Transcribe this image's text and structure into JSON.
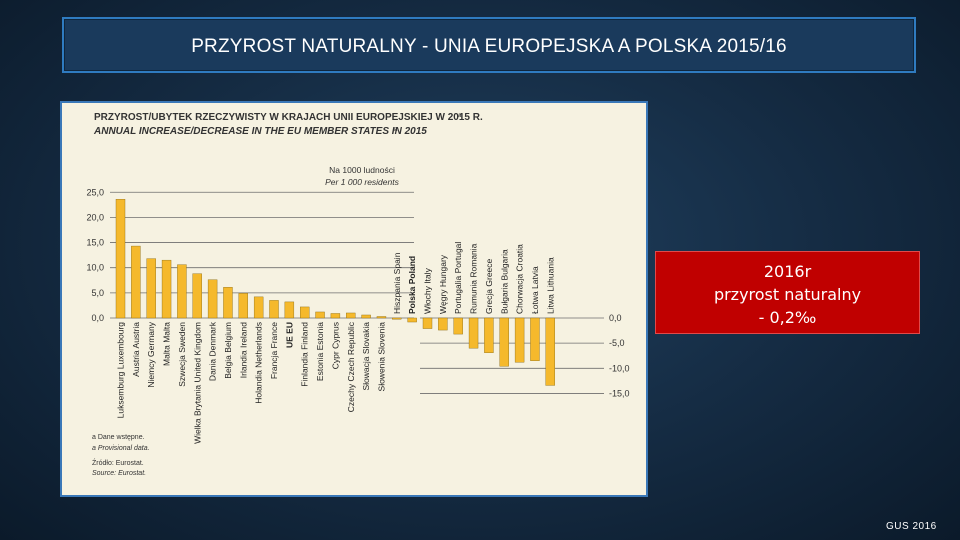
{
  "header": {
    "title": "PRZYROST NATURALNY - UNIA EUROPEJSKA A POLSKA 2015/16"
  },
  "callout": {
    "line1": "2016r",
    "line2": "przyrost naturalny",
    "line3": "- 0,2‰"
  },
  "footer": {
    "source": "GUS 2016"
  },
  "chart_data": {
    "type": "bar",
    "title": "PRZYROST/UBYTEK RZECZYWISTY W KRAJACH UNII EUROPEJSKIEJ W 2015 R.",
    "title_en": "ANNUAL INCREASE/DECREASE IN THE EU MEMBER STATES IN 2015",
    "title_note": "a",
    "unit": "Na 1000 ludności",
    "unit_en": "Per 1 000 residents",
    "ylim": [
      -15,
      25
    ],
    "positive_ticks": [
      "25,0",
      "20,0",
      "15,0",
      "10,0",
      "5,0",
      "0,0"
    ],
    "negative_ticks": [
      "0,0",
      "-5,0",
      "-10,0",
      "-15,0"
    ],
    "bar_color": "#f5b92c",
    "highlight_color": "#222222",
    "categories": [
      "Luksemburg Luxembourg",
      "Austria Austria",
      "Niemcy Germany",
      "Malta Malta",
      "Szwecja Sweden",
      "Wielka Brytania United Kingdom",
      "Dania Denmark",
      "Belgia Belgium",
      "Irlandia Ireland",
      "Holandia Netherlands",
      "Francja France",
      "UE EU",
      "Finlandia Finland",
      "Estonia Estonia",
      "Cypr Cyprus",
      "Czechy Czech Republic",
      "Słowacja Slovakia",
      "Słowenia Slovenia",
      "Hiszpania Spain",
      "Polska Poland",
      "Włochy Italy",
      "Węgry Hungary",
      "Portugalia Portugal",
      "Rumunia Romania",
      "Grecja Greece",
      "Bułgaria Bulgaria",
      "Chorwacja Croatia",
      "Łotwa Latvia",
      "Litwa Lithuania"
    ],
    "values": [
      23.6,
      14.3,
      11.8,
      11.5,
      10.6,
      8.8,
      7.6,
      6.1,
      4.9,
      4.2,
      3.5,
      3.2,
      2.2,
      1.2,
      0.9,
      1.0,
      0.6,
      0.3,
      -0.2,
      -0.8,
      -2.1,
      -2.4,
      -3.2,
      -6.0,
      -6.9,
      -9.6,
      -8.8,
      -8.5,
      -13.4
    ],
    "highlight": [
      "UE EU",
      "Polska Poland"
    ],
    "footnotes": [
      "a Dane wstępne.",
      "a Provisional data.",
      "Źródło: Eurostat.",
      "Source: Eurostat."
    ]
  }
}
